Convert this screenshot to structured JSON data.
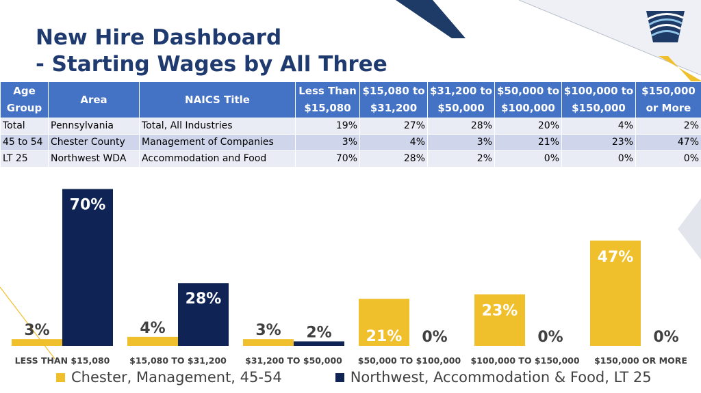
{
  "slide": {
    "title_line1": "New Hire Dashboard",
    "title_line2": "- Starting Wages by All Three"
  },
  "table": {
    "headers": [
      "Age Group",
      "Area",
      "NAICS Title",
      "Less Than $15,080",
      "$15,080 to $31,200",
      "$31,200 to $50,000",
      "$50,000 to $100,000",
      "$100,000 to $150,000",
      "$150,000 or More"
    ],
    "rows": [
      [
        "Total",
        "Pennsylvania",
        "Total, All Industries",
        "19%",
        "27%",
        "28%",
        "20%",
        "4%",
        "2%"
      ],
      [
        "45 to 54",
        "Chester County",
        "Management of Companies",
        "3%",
        "4%",
        "3%",
        "21%",
        "23%",
        "47%"
      ],
      [
        "LT 25",
        "Northwest WDA",
        "Accommodation and Food",
        "70%",
        "28%",
        "2%",
        "0%",
        "0%",
        "0%"
      ]
    ]
  },
  "chart_data": {
    "type": "bar",
    "categories": [
      "LESS THAN $15,080",
      "$15,080 TO $31,200",
      "$31,200 TO $50,000",
      "$50,000 TO $100,000",
      "$100,000 TO $150,000",
      "$150,000 OR MORE"
    ],
    "series": [
      {
        "name": "Chester, Management, 45-54",
        "values": [
          3,
          4,
          3,
          21,
          23,
          47
        ],
        "labels": [
          "3%",
          "4%",
          "3%",
          "21%",
          "23%",
          "47%"
        ],
        "color": "#f0bf2c"
      },
      {
        "name": "Northwest, Accommodation & Food, LT 25",
        "values": [
          70,
          28,
          2,
          0,
          0,
          0
        ],
        "labels": [
          "70%",
          "28%",
          "2%",
          "0%",
          "0%",
          "0%"
        ],
        "color": "#0f2454"
      }
    ],
    "ylim": [
      0,
      72
    ],
    "grid": false,
    "legend_position": "bottom"
  },
  "colors": {
    "title": "#1f3a6e",
    "table_header": "#4472c4",
    "gold": "#f0bf2c",
    "navy": "#0f2454"
  }
}
